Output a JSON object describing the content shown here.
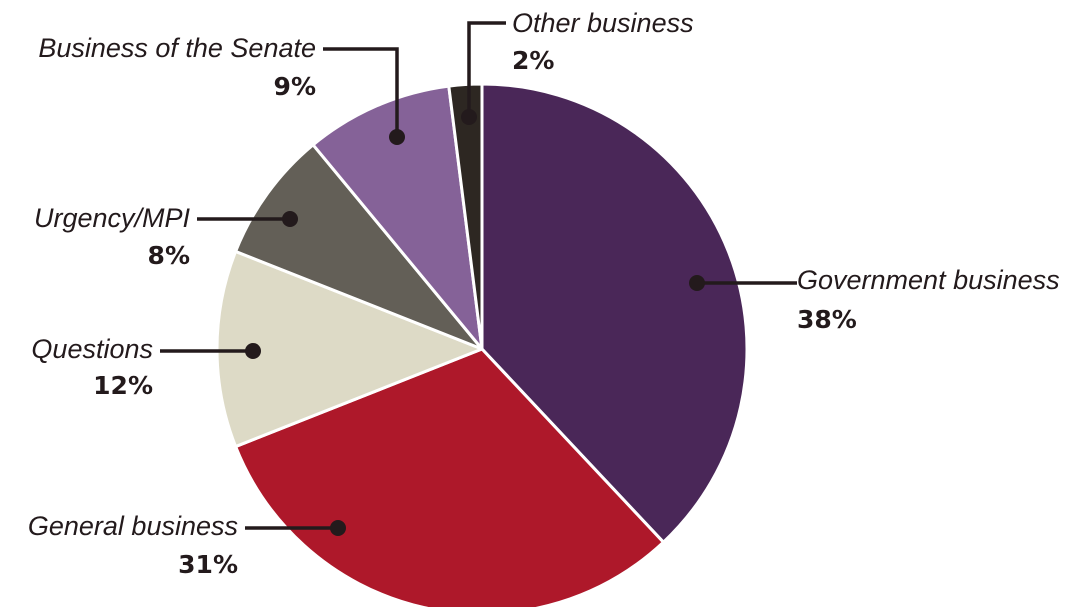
{
  "chart_data": {
    "type": "pie",
    "title": "",
    "slices": [
      {
        "label": "Government business",
        "value": 38,
        "value_label": "38%",
        "color": "#4a2758"
      },
      {
        "label": "General business",
        "value": 31,
        "value_label": "31%",
        "color": "#ae182a"
      },
      {
        "label": "Questions",
        "value": 12,
        "value_label": "12%",
        "color": "#dddac6"
      },
      {
        "label": "Urgency/MPI",
        "value": 8,
        "value_label": "8%",
        "color": "#635f57"
      },
      {
        "label": "Business of the Senate",
        "value": 9,
        "value_label": "9%",
        "color": "#856298"
      },
      {
        "label": "Other business",
        "value": 2,
        "value_label": "2%",
        "color": "#2d2722"
      }
    ],
    "start_angle": "12 o'clock",
    "direction": "clockwise",
    "label_style": "leader-lines"
  }
}
